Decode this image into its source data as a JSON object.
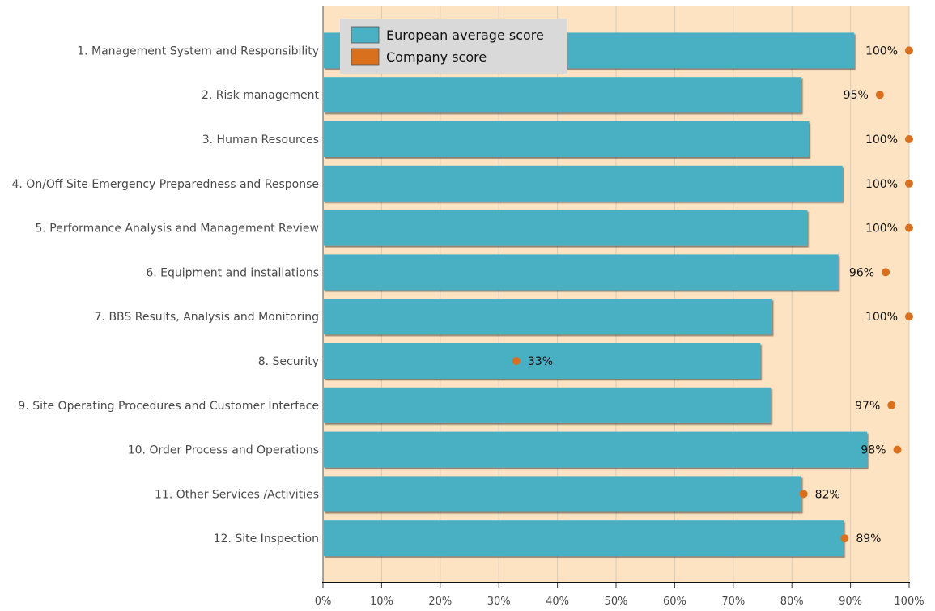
{
  "chart_data": {
    "type": "bar",
    "orientation": "horizontal",
    "categories": [
      "1. Management System and Responsibility",
      "2. Risk management",
      "3. Human Resources",
      "4. On/Off Site Emergency Preparedness and Response",
      "5. Performance Analysis and Management Review",
      "6. Equipment and installations",
      "7. BBS Results, Analysis and Monitoring",
      "8. Security",
      "9. Site Operating Procedures and Customer Interface",
      "10. Order Process and Operations",
      "11. Other Services /Activities",
      "12. Site Inspection"
    ],
    "series": [
      {
        "name": "European average score",
        "type": "bar",
        "values": [
          90.5,
          81.5,
          82.8,
          88.5,
          82.5,
          87.8,
          76.5,
          74.5,
          76.3,
          92.7,
          81.5,
          88.7
        ]
      },
      {
        "name": "Company score",
        "type": "point",
        "values": [
          100,
          95,
          100,
          100,
          100,
          96,
          100,
          33,
          97,
          98,
          82,
          89
        ],
        "labels": [
          "100%",
          "95%",
          "100%",
          "100%",
          "100%",
          "96%",
          "100%",
          "33%",
          "97%",
          "98%",
          "82%",
          "89%"
        ]
      }
    ],
    "xlim": [
      0,
      100
    ],
    "x_ticks": [
      "0%",
      "10%",
      "20%",
      "30%",
      "40%",
      "50%",
      "60%",
      "70%",
      "80%",
      "90%",
      "100%"
    ],
    "grid": true,
    "legend": {
      "position": "top-left",
      "entries": [
        "European average score",
        "Company score"
      ]
    },
    "colors": {
      "bar": "#4ab0c4",
      "point": "#d9701e",
      "plot_background": "#fde3c2",
      "gridline": "#d9cbb8",
      "legend_background": "#d9d9d9"
    }
  }
}
